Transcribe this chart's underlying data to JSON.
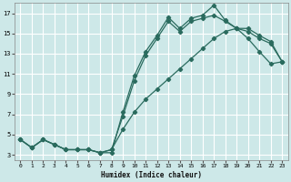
{
  "xlabel": "Humidex (Indice chaleur)",
  "background_color": "#cde8e8",
  "grid_color": "#ffffff",
  "line_color": "#2a6b5e",
  "xlim": [
    -0.5,
    23.5
  ],
  "ylim": [
    2.5,
    18.0
  ],
  "xticks": [
    0,
    1,
    2,
    3,
    4,
    5,
    6,
    7,
    8,
    9,
    10,
    11,
    12,
    13,
    14,
    15,
    16,
    17,
    18,
    19,
    20,
    21,
    22,
    23
  ],
  "yticks": [
    3,
    5,
    7,
    9,
    11,
    13,
    15,
    17
  ],
  "line1_x": [
    0,
    1,
    2,
    3,
    4,
    5,
    6,
    7,
    8,
    9,
    10,
    11,
    12,
    13,
    14,
    15,
    16,
    17,
    18,
    19,
    20,
    21,
    22,
    23
  ],
  "line1_y": [
    4.5,
    3.7,
    4.5,
    4.0,
    3.5,
    3.5,
    3.5,
    3.2,
    3.2,
    7.2,
    10.8,
    13.2,
    14.8,
    16.6,
    15.5,
    16.5,
    16.8,
    17.8,
    16.3,
    15.5,
    14.5,
    13.2,
    12.0,
    12.2
  ],
  "line2_x": [
    0,
    1,
    2,
    3,
    4,
    5,
    6,
    7,
    8,
    9,
    10,
    11,
    12,
    13,
    14,
    15,
    16,
    17,
    18,
    19,
    20,
    21,
    22,
    23
  ],
  "line2_y": [
    4.5,
    3.7,
    4.5,
    4.0,
    3.5,
    3.5,
    3.5,
    3.2,
    3.5,
    6.8,
    10.3,
    12.8,
    14.5,
    16.2,
    15.2,
    16.2,
    16.5,
    16.8,
    16.2,
    15.5,
    15.2,
    14.5,
    14.0,
    12.2
  ],
  "line3_x": [
    0,
    1,
    2,
    3,
    4,
    5,
    6,
    7,
    8,
    9,
    10,
    11,
    12,
    13,
    14,
    15,
    16,
    17,
    18,
    19,
    20,
    21,
    22,
    23
  ],
  "line3_y": [
    4.5,
    3.7,
    4.5,
    4.0,
    3.5,
    3.5,
    3.5,
    3.2,
    3.5,
    5.5,
    7.2,
    8.5,
    9.5,
    10.5,
    11.5,
    12.5,
    13.5,
    14.5,
    15.2,
    15.5,
    15.5,
    14.8,
    14.2,
    12.2
  ]
}
